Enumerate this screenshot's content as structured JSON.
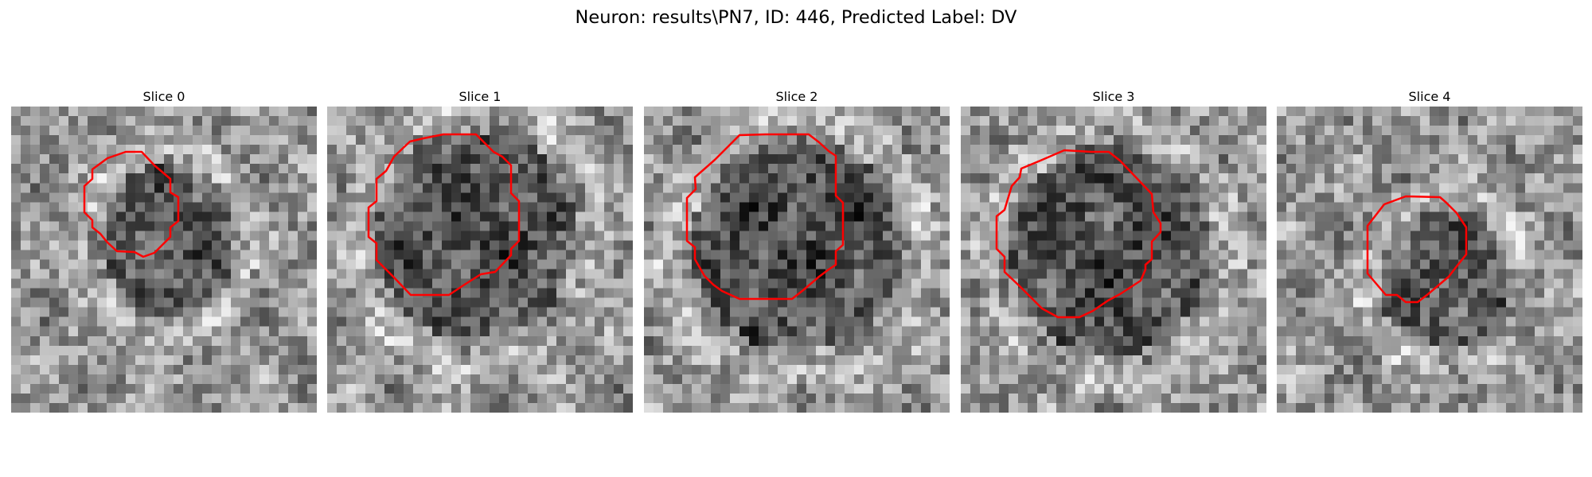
{
  "figure": {
    "title": "Neuron: results\\PN7, ID: 446, Predicted Label: DV",
    "contour_color": "#ff0000"
  },
  "slices": [
    {
      "title": "Slice 0"
    },
    {
      "title": "Slice 1"
    },
    {
      "title": "Slice 2"
    },
    {
      "title": "Slice 3"
    },
    {
      "title": "Slice 4"
    }
  ]
}
